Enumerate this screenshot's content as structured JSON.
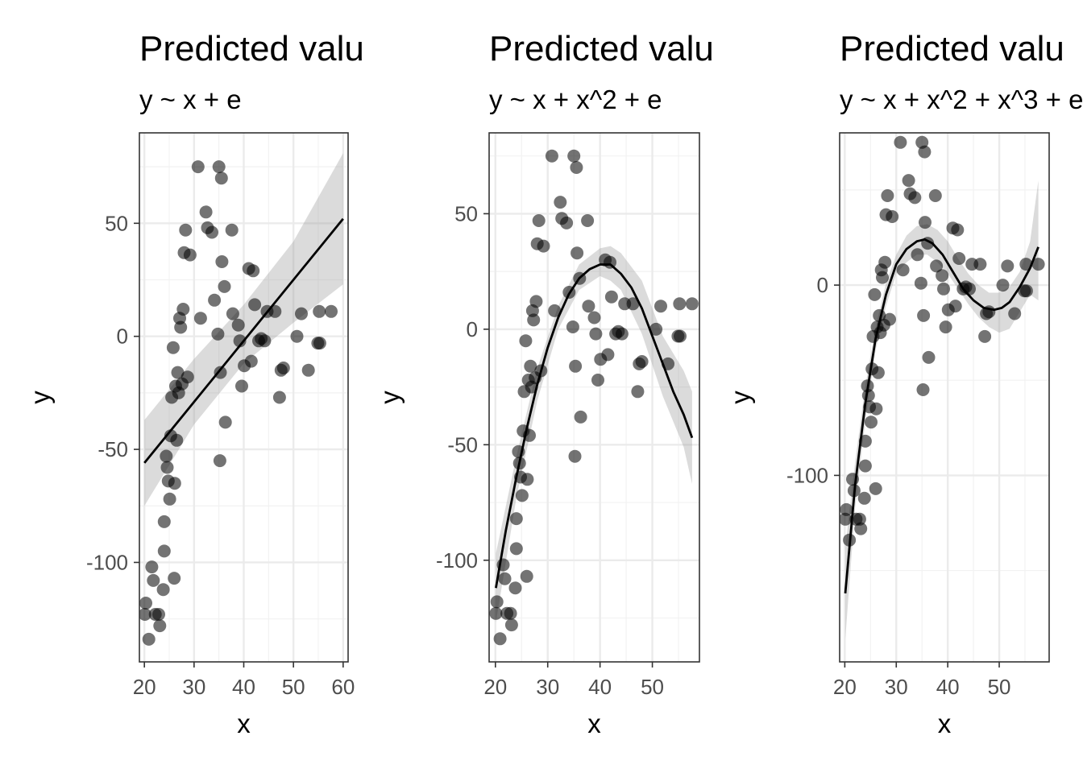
{
  "chart_data": [
    {
      "type": "scatter",
      "title": "Predicted valu",
      "subtitle": "y ~ x + e",
      "xlabel": "x",
      "ylabel": "y",
      "xlim": [
        19,
        61
      ],
      "ylim": [
        -144,
        90
      ],
      "x_ticks": [
        20,
        30,
        40,
        50,
        60
      ],
      "x_tick_labels": [
        "20",
        "30",
        "40",
        "50",
        "60"
      ],
      "y_ticks": [
        -100,
        -50,
        0,
        50
      ],
      "y_tick_labels": [
        "-100",
        "-50",
        "0",
        "50"
      ],
      "grid": true,
      "points": [
        [
          20.1,
          -123
        ],
        [
          20.3,
          -118
        ],
        [
          20.9,
          -134
        ],
        [
          21.5,
          -102
        ],
        [
          21.8,
          -108
        ],
        [
          22.2,
          -123
        ],
        [
          22.9,
          -123
        ],
        [
          23.1,
          -128
        ],
        [
          23.8,
          -112
        ],
        [
          24,
          -95
        ],
        [
          24,
          -82
        ],
        [
          24.4,
          -53
        ],
        [
          24.6,
          -58
        ],
        [
          24.8,
          -64
        ],
        [
          25.1,
          -72
        ],
        [
          25.3,
          -44
        ],
        [
          25.5,
          -27
        ],
        [
          25.8,
          -5
        ],
        [
          26.1,
          -65
        ],
        [
          26,
          -107
        ],
        [
          26.3,
          -22
        ],
        [
          26.5,
          -46
        ],
        [
          26.7,
          -16
        ],
        [
          26.9,
          -25
        ],
        [
          27.1,
          8
        ],
        [
          27.3,
          4
        ],
        [
          27.6,
          -21
        ],
        [
          27.8,
          12
        ],
        [
          28,
          37
        ],
        [
          28.3,
          47
        ],
        [
          28.7,
          -18
        ],
        [
          29.2,
          36
        ],
        [
          30.8,
          75
        ],
        [
          31.3,
          8
        ],
        [
          32.4,
          55
        ],
        [
          32.7,
          48
        ],
        [
          33.6,
          46
        ],
        [
          34.1,
          16
        ],
        [
          34.8,
          1
        ],
        [
          35,
          75
        ],
        [
          35.5,
          70
        ],
        [
          35.6,
          33
        ],
        [
          36.1,
          22
        ],
        [
          36.3,
          -38
        ],
        [
          35.2,
          -55
        ],
        [
          35.3,
          -16
        ],
        [
          37.6,
          47
        ],
        [
          37.8,
          10
        ],
        [
          38.9,
          5
        ],
        [
          39.2,
          -2
        ],
        [
          39.6,
          -22
        ],
        [
          40.1,
          -13
        ],
        [
          41,
          30
        ],
        [
          41.5,
          -11
        ],
        [
          41.9,
          29
        ],
        [
          42.2,
          14
        ],
        [
          43,
          -2
        ],
        [
          43.5,
          -1
        ],
        [
          44.2,
          -2
        ],
        [
          44.7,
          11
        ],
        [
          46.3,
          11
        ],
        [
          47.2,
          -27
        ],
        [
          47.5,
          -15
        ],
        [
          48,
          -14
        ],
        [
          50.7,
          0
        ],
        [
          51.6,
          10
        ],
        [
          53,
          -15
        ],
        [
          54.9,
          -3
        ],
        [
          55.3,
          -3
        ],
        [
          55.2,
          11
        ],
        [
          57.6,
          11
        ]
      ],
      "fit_line": {
        "x": [
          20,
          60
        ],
        "y": [
          -56,
          52
        ]
      },
      "ci_band": {
        "x": [
          20,
          30,
          40,
          50,
          60
        ],
        "upper": [
          -37,
          -10,
          14,
          42,
          81
        ],
        "lower": [
          -75,
          -39,
          -12,
          6,
          23
        ]
      }
    },
    {
      "type": "scatter",
      "title": "Predicted valu",
      "subtitle": "y ~ x + x^2 + e",
      "xlabel": "x",
      "ylabel": "y",
      "xlim": [
        18.8,
        59
      ],
      "ylim": [
        -144,
        85
      ],
      "x_ticks": [
        20,
        30,
        40,
        50
      ],
      "x_tick_labels": [
        "20",
        "30",
        "40",
        "50"
      ],
      "y_ticks": [
        -100,
        -50,
        0,
        50
      ],
      "y_tick_labels": [
        "-100",
        "-50",
        "0",
        "50"
      ],
      "grid": true,
      "points": [
        [
          20.1,
          -123
        ],
        [
          20.3,
          -118
        ],
        [
          20.9,
          -134
        ],
        [
          21.5,
          -102
        ],
        [
          21.8,
          -108
        ],
        [
          22.2,
          -123
        ],
        [
          22.9,
          -123
        ],
        [
          23.1,
          -128
        ],
        [
          23.8,
          -112
        ],
        [
          24,
          -95
        ],
        [
          24,
          -82
        ],
        [
          24.4,
          -53
        ],
        [
          24.6,
          -58
        ],
        [
          24.8,
          -64
        ],
        [
          25.1,
          -72
        ],
        [
          25.3,
          -44
        ],
        [
          25.5,
          -27
        ],
        [
          25.8,
          -5
        ],
        [
          26.1,
          -65
        ],
        [
          26,
          -107
        ],
        [
          26.3,
          -22
        ],
        [
          26.5,
          -46
        ],
        [
          26.7,
          -16
        ],
        [
          26.9,
          -25
        ],
        [
          27.1,
          8
        ],
        [
          27.3,
          4
        ],
        [
          27.6,
          -21
        ],
        [
          27.8,
          12
        ],
        [
          28,
          37
        ],
        [
          28.3,
          47
        ],
        [
          28.7,
          -18
        ],
        [
          29.2,
          36
        ],
        [
          30.8,
          75
        ],
        [
          31.3,
          8
        ],
        [
          32.4,
          55
        ],
        [
          32.7,
          48
        ],
        [
          33.6,
          46
        ],
        [
          34.1,
          16
        ],
        [
          34.8,
          1
        ],
        [
          35,
          75
        ],
        [
          35.5,
          70
        ],
        [
          35.6,
          33
        ],
        [
          36.1,
          22
        ],
        [
          36.3,
          -38
        ],
        [
          35.2,
          -55
        ],
        [
          35.3,
          -16
        ],
        [
          37.6,
          47
        ],
        [
          37.8,
          10
        ],
        [
          38.9,
          5
        ],
        [
          39.2,
          -2
        ],
        [
          39.6,
          -22
        ],
        [
          40.1,
          -13
        ],
        [
          41,
          30
        ],
        [
          41.5,
          -11
        ],
        [
          41.9,
          29
        ],
        [
          42.2,
          14
        ],
        [
          43,
          -2
        ],
        [
          43.5,
          -1
        ],
        [
          44.2,
          -2
        ],
        [
          44.7,
          11
        ],
        [
          46.3,
          11
        ],
        [
          47.2,
          -27
        ],
        [
          47.5,
          -15
        ],
        [
          48,
          -14
        ],
        [
          50.7,
          0
        ],
        [
          51.6,
          10
        ],
        [
          53,
          -15
        ],
        [
          54.9,
          -3
        ],
        [
          55.3,
          -3
        ],
        [
          55.2,
          11
        ],
        [
          57.6,
          11
        ]
      ],
      "fit_line": {
        "x": [
          20.1,
          22,
          24,
          26,
          28,
          30,
          32,
          34,
          36,
          38,
          40,
          42,
          44,
          46,
          48,
          50,
          52,
          54,
          56,
          57.6
        ],
        "y": [
          -112,
          -87,
          -64,
          -43,
          -24,
          -8,
          5,
          15,
          22,
          26,
          28,
          28,
          24,
          18,
          9,
          -3,
          -15,
          -27,
          -37,
          -47
        ]
      },
      "ci_band": {
        "x": [
          20.1,
          24,
          28,
          32,
          36,
          40,
          42,
          44,
          48,
          52,
          56,
          57.6
        ],
        "upper": [
          -97,
          -55,
          -17,
          10,
          28,
          35,
          36,
          33,
          21,
          -3,
          -18,
          -27
        ],
        "lower": [
          -127,
          -73,
          -31,
          0,
          17,
          23,
          21,
          17,
          -2,
          -29,
          -51,
          -67
        ]
      }
    },
    {
      "type": "scatter",
      "title": "Predicted valu",
      "subtitle": "y ~ x + x^2 + x^3 + e",
      "xlabel": "x",
      "ylabel": "y",
      "xlim": [
        19,
        59.7
      ],
      "ylim": [
        -198,
        80
      ],
      "x_ticks": [
        20,
        30,
        40,
        50
      ],
      "x_tick_labels": [
        "20",
        "30",
        "40",
        "50"
      ],
      "y_ticks": [
        -100,
        0
      ],
      "y_tick_labels": [
        "-100",
        "0"
      ],
      "grid": true,
      "points": [
        [
          20.1,
          -123
        ],
        [
          20.3,
          -118
        ],
        [
          20.9,
          -134
        ],
        [
          21.5,
          -102
        ],
        [
          21.8,
          -108
        ],
        [
          22.2,
          -123
        ],
        [
          22.9,
          -123
        ],
        [
          23.1,
          -128
        ],
        [
          23.8,
          -112
        ],
        [
          24,
          -95
        ],
        [
          24,
          -82
        ],
        [
          24.4,
          -53
        ],
        [
          24.6,
          -58
        ],
        [
          24.8,
          -64
        ],
        [
          25.1,
          -72
        ],
        [
          25.3,
          -44
        ],
        [
          25.5,
          -27
        ],
        [
          25.8,
          -5
        ],
        [
          26.1,
          -65
        ],
        [
          26,
          -107
        ],
        [
          26.3,
          -22
        ],
        [
          26.5,
          -46
        ],
        [
          26.7,
          -16
        ],
        [
          26.9,
          -25
        ],
        [
          27.1,
          8
        ],
        [
          27.3,
          4
        ],
        [
          27.6,
          -21
        ],
        [
          27.8,
          12
        ],
        [
          28,
          37
        ],
        [
          28.3,
          47
        ],
        [
          28.7,
          -18
        ],
        [
          29.2,
          36
        ],
        [
          30.8,
          75
        ],
        [
          31.3,
          8
        ],
        [
          32.4,
          55
        ],
        [
          32.7,
          48
        ],
        [
          33.6,
          46
        ],
        [
          34.1,
          16
        ],
        [
          34.8,
          1
        ],
        [
          35,
          75
        ],
        [
          35.5,
          70
        ],
        [
          35.6,
          33
        ],
        [
          36.1,
          22
        ],
        [
          36.3,
          -38
        ],
        [
          35.2,
          -55
        ],
        [
          35.3,
          -16
        ],
        [
          37.6,
          47
        ],
        [
          37.8,
          10
        ],
        [
          38.9,
          5
        ],
        [
          39.2,
          -2
        ],
        [
          39.6,
          -22
        ],
        [
          40.1,
          -13
        ],
        [
          41,
          30
        ],
        [
          41.5,
          -11
        ],
        [
          41.9,
          29
        ],
        [
          42.2,
          14
        ],
        [
          43,
          -2
        ],
        [
          43.5,
          -1
        ],
        [
          44.2,
          -2
        ],
        [
          44.7,
          11
        ],
        [
          46.3,
          11
        ],
        [
          47.2,
          -27
        ],
        [
          47.5,
          -15
        ],
        [
          48,
          -14
        ],
        [
          50.7,
          0
        ],
        [
          51.6,
          10
        ],
        [
          53,
          -15
        ],
        [
          54.9,
          -3
        ],
        [
          55.3,
          -3
        ],
        [
          55.2,
          11
        ],
        [
          57.6,
          11
        ]
      ],
      "fit_line": {
        "x": [
          20.1,
          22,
          24,
          26,
          28,
          30,
          32,
          34,
          35.5,
          37,
          39,
          41,
          43,
          45,
          47,
          49,
          50.5,
          52,
          54,
          56,
          57.6
        ],
        "y": [
          -162,
          -105,
          -62,
          -28,
          -5,
          11,
          19,
          23,
          24,
          22,
          16,
          7,
          -2,
          -8,
          -12,
          -13,
          -12,
          -9,
          -1,
          9,
          20
        ]
      },
      "ci_band": {
        "x": [
          20.1,
          22,
          24,
          26,
          28,
          30,
          32,
          34,
          36,
          38,
          40,
          42,
          44,
          46,
          48,
          50,
          52,
          54,
          56,
          57.6
        ],
        "upper": [
          -138,
          -93,
          -53,
          -22,
          1,
          16,
          26,
          31,
          32,
          29,
          23,
          14,
          6,
          0,
          -4,
          -4,
          -1,
          7,
          23,
          55
        ],
        "lower": [
          -186,
          -117,
          -71,
          -34,
          -11,
          6,
          12,
          16,
          16,
          12,
          6,
          -2,
          -10,
          -17,
          -22,
          -25,
          -23,
          -14,
          -5,
          -8
        ]
      }
    }
  ]
}
